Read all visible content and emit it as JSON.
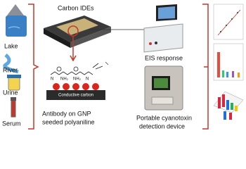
{
  "samples": {
    "labels": [
      "Lake",
      "River",
      "Urine",
      "Serum"
    ]
  },
  "electrode": {
    "title": "Carbon IDEs"
  },
  "analyzer": {
    "label": "EIS response"
  },
  "chemistry": {
    "atoms": [
      "N",
      "NH₂",
      "NH₂",
      "N"
    ],
    "substrate": "Conductive carbon",
    "caption": [
      "Antibody on GNP",
      "seeded polyaniline"
    ]
  },
  "device": {
    "caption": [
      "Portable cyanotoxin",
      "detection device"
    ]
  }
}
